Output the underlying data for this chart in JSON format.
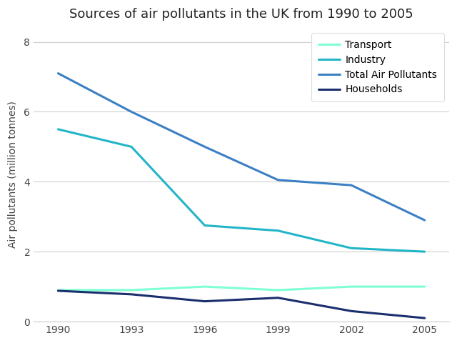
{
  "title": "Sources of air pollutants in the UK from 1990 to 2005",
  "ylabel": "Air pollutants (million tonnes)",
  "years": [
    1990,
    1993,
    1996,
    1999,
    2002,
    2005
  ],
  "series": [
    {
      "label": "Transport",
      "color": "#7fffd4",
      "linewidth": 2.2,
      "values": [
        0.9,
        0.9,
        1.0,
        0.9,
        1.0,
        1.0
      ]
    },
    {
      "label": "Industry",
      "color": "#22b5c8",
      "linewidth": 2.2,
      "values": [
        5.5,
        5.0,
        2.75,
        2.6,
        2.1,
        2.0
      ]
    },
    {
      "label": "Total Air Pollutants",
      "color": "#3b7fc4",
      "linewidth": 2.2,
      "values": [
        7.1,
        6.0,
        5.0,
        4.05,
        3.9,
        2.9
      ]
    },
    {
      "label": "Households",
      "color": "#1a2f6e",
      "linewidth": 2.2,
      "values": [
        0.88,
        0.78,
        0.58,
        0.68,
        0.3,
        0.1
      ]
    }
  ],
  "ylim": [
    0,
    8.4
  ],
  "yticks": [
    0,
    2,
    4,
    6,
    8
  ],
  "xticks": [
    1990,
    1993,
    1996,
    1999,
    2002,
    2005
  ],
  "legend_loc": "upper right",
  "background_color": "#ffffff",
  "grid_color": "#d0d0d0",
  "title_fontsize": 13,
  "label_fontsize": 10,
  "tick_fontsize": 10
}
